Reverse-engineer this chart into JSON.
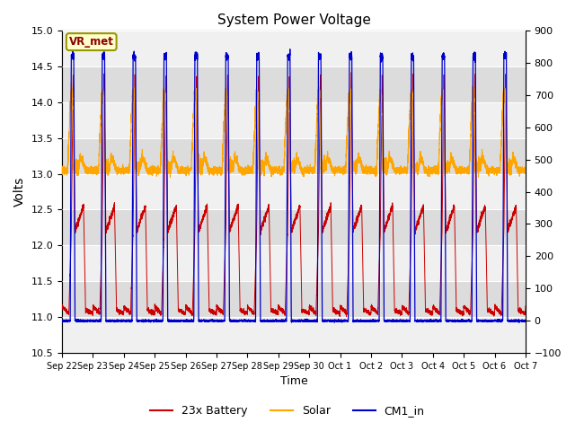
{
  "title": "System Power Voltage",
  "xlabel": "Time",
  "ylabel_left": "Volts",
  "ylim_left": [
    10.5,
    15.0
  ],
  "ylim_right": [
    -100,
    900
  ],
  "yticks_left": [
    10.5,
    11.0,
    11.5,
    12.0,
    12.5,
    13.0,
    13.5,
    14.0,
    14.5,
    15.0
  ],
  "yticks_right": [
    -100,
    0,
    100,
    200,
    300,
    400,
    500,
    600,
    700,
    800,
    900
  ],
  "xtick_labels": [
    "Sep 22",
    "Sep 23",
    "Sep 24",
    "Sep 25",
    "Sep 26",
    "Sep 27",
    "Sep 28",
    "Sep 29",
    "Sep 30",
    "Oct 1",
    "Oct 2",
    "Oct 3",
    "Oct 4",
    "Oct 5",
    "Oct 6",
    "Oct 7"
  ],
  "n_days": 15,
  "colors": {
    "battery": "#CC0000",
    "solar": "#FFA500",
    "cm1": "#0000CC",
    "bg_dark": "#DCDCDC",
    "bg_light": "#F0F0F0",
    "vr_met_bg": "#FFFFCC",
    "vr_met_border": "#999900",
    "vr_met_text": "#8B0000"
  },
  "legend_labels": [
    "23x Battery",
    "Solar",
    "CM1_in"
  ],
  "vr_met_label": "VR_met"
}
